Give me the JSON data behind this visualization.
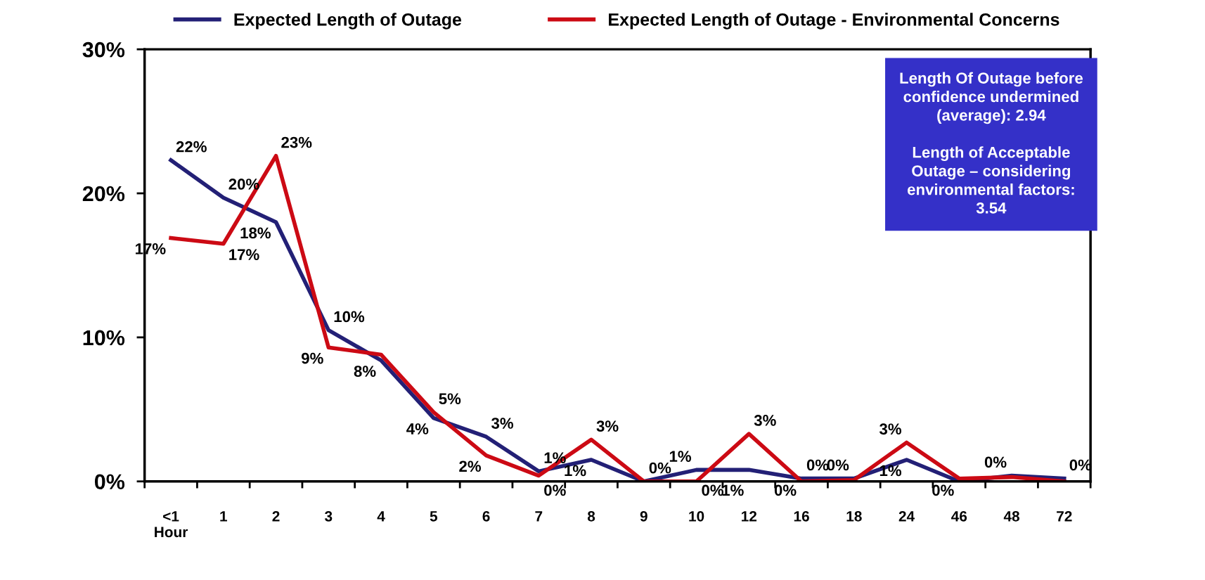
{
  "chart_data": {
    "type": "line",
    "categories": [
      "<1\nHour",
      "1",
      "2",
      "3",
      "4",
      "5",
      "6",
      "7",
      "8",
      "9",
      "10",
      "12",
      "16",
      "18",
      "24",
      "46",
      "48",
      "72"
    ],
    "series": [
      {
        "name": "Expected Length of Outage",
        "color": "#232076",
        "values": [
          22.3,
          19.7,
          18.0,
          10.5,
          8.4,
          4.4,
          3.1,
          0.7,
          1.5,
          0,
          0.8,
          0.8,
          0.2,
          0.2,
          1.5,
          0,
          0.4,
          0.2
        ],
        "value_labels": [
          "22%",
          "20%",
          "18%",
          "10%",
          "8%",
          "4%",
          "3%",
          "1%",
          "1%",
          "0%",
          "1%",
          "1%",
          "0%",
          "0%",
          "1%",
          "0%",
          "0%",
          "0%"
        ]
      },
      {
        "name": "Expected Length of Outage - Environmental Concerns",
        "color": "#cc0a14",
        "values": [
          16.9,
          16.5,
          22.6,
          9.3,
          8.8,
          4.8,
          1.8,
          0.4,
          2.9,
          0,
          0,
          3.3,
          0,
          0.1,
          2.7,
          0.2,
          0.3,
          0
        ],
        "value_labels": [
          "17%",
          "17%",
          "23%",
          "9%",
          null,
          "5%",
          "2%",
          "0%",
          "3%",
          null,
          "0%",
          "3%",
          "0%",
          null,
          "3%",
          null,
          null,
          null
        ]
      }
    ],
    "ylim": [
      0,
      30
    ],
    "yticks": [
      {
        "value": 0,
        "label": "0%"
      },
      {
        "value": 10,
        "label": "10%"
      },
      {
        "value": 20,
        "label": "20%"
      },
      {
        "value": 30,
        "label": "30%"
      }
    ],
    "grid": false,
    "legend": "top",
    "marker": "none",
    "line_style": "solid",
    "annotations": [
      "Length Of Outage before\nconfidence undermined\n(average): 2.94\n\nLength of Acceptable\nOutage – considering\nenvironmental factors:\n3.54"
    ]
  }
}
